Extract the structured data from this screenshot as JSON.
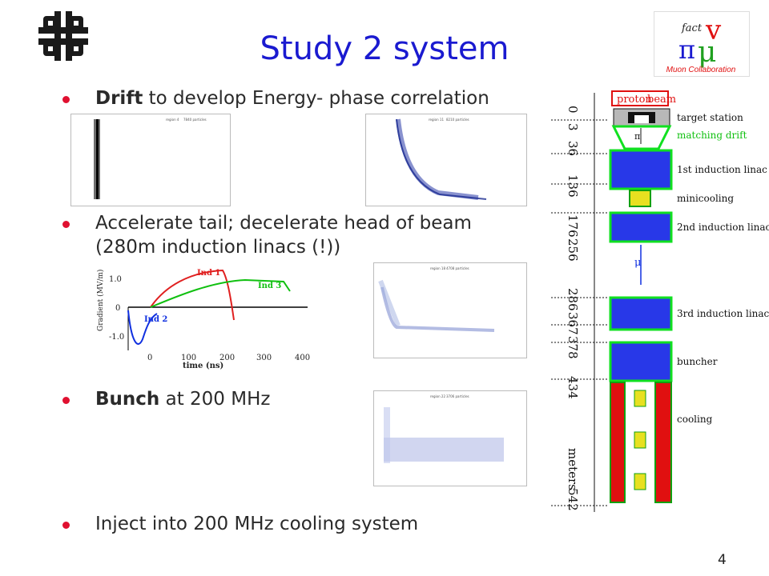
{
  "slide": {
    "title": "Study 2 system",
    "page_number": "4",
    "logo_right": {
      "top": "fact",
      "bottom": "Muon Collaboration"
    }
  },
  "bullets": [
    {
      "bold": "Drift",
      "rest": " to develop Energy- phase correlation"
    },
    {
      "bold": "",
      "rest": "Accelerate tail; decelerate head of beam"
    },
    {
      "bold": "",
      "rest": "(280m induction linacs (!))"
    },
    {
      "bold": "Bunch",
      "rest": " at 200 MHz"
    },
    {
      "bold": "",
      "rest": "Inject into 200 MHz cooling system"
    }
  ],
  "gradient_chart": {
    "ylabel": "Gradient (MV/m)",
    "xlabel": "time (ns)",
    "y_ticks": [
      "1.0",
      "0",
      "-1.0"
    ],
    "x_ticks": [
      "0",
      "100",
      "200",
      "300",
      "400"
    ],
    "labels": [
      "Ind 1",
      "Ind 2",
      "Ind 3"
    ],
    "colors": {
      "ind1": "#e02020",
      "ind2": "#1030e0",
      "ind3": "#10c010"
    }
  },
  "phase_plots": [
    {
      "region": "region 4",
      "particles": "7840 particles"
    },
    {
      "region": "region 11",
      "particles": "8210 particles"
    },
    {
      "region": "region 18",
      "particles": "4708 particles"
    },
    {
      "region": "region 22",
      "particles": "3706 particles"
    }
  ],
  "layout_diagram": {
    "axis_label": "meters",
    "ticks": [
      "0",
      "3",
      "36",
      "136",
      "176",
      "256",
      "286",
      "367",
      "378",
      "434",
      "542"
    ],
    "components": [
      "proton",
      "beam",
      "target station",
      "matching drift",
      "1st induction linac",
      "minicooling",
      "2nd induction linac",
      "3rd induction linac",
      "buncher",
      "cooling"
    ],
    "symbols": {
      "pi": "π",
      "mu": "μ"
    },
    "colors": {
      "green": "#10e020",
      "blue": "#2838e8",
      "red": "#e01010",
      "yellow": "#e8e020"
    }
  }
}
